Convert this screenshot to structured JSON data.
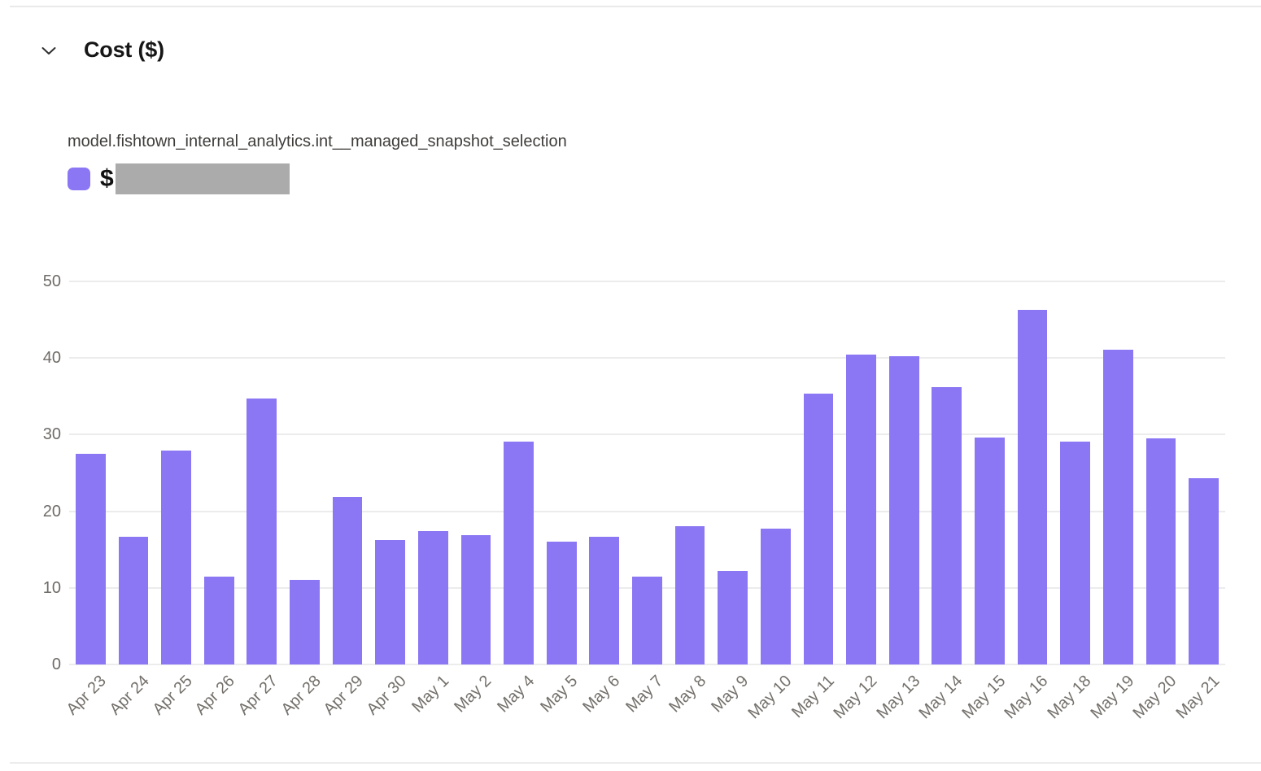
{
  "header": {
    "title": "Cost ($)"
  },
  "legend": {
    "series_name": "model.fishtown_internal_analytics.int__managed_snapshot_selection",
    "value_prefix": "$",
    "value_redacted": true
  },
  "colors": {
    "bar": "#8b77f4",
    "legend_swatch": "#8b77f4",
    "redaction_box": "#ababab",
    "gridline": "#ececec",
    "axis_label": "#6f6b67",
    "series_label": "#3f3d3a",
    "title": "#161616",
    "divider": "#e9e9e9"
  },
  "chart_data": {
    "type": "bar",
    "title": "Cost ($)",
    "series_name": "model.fishtown_internal_analytics.int__managed_snapshot_selection",
    "categories": [
      "Apr 23",
      "Apr 24",
      "Apr 25",
      "Apr 26",
      "Apr 27",
      "Apr 28",
      "Apr 29",
      "Apr 30",
      "May 1",
      "May 2",
      "May 4",
      "May 5",
      "May 6",
      "May 7",
      "May 8",
      "May 9",
      "May 10",
      "May 11",
      "May 12",
      "May 13",
      "May 14",
      "May 15",
      "May 16",
      "May 18",
      "May 19",
      "May 20",
      "May 21"
    ],
    "values": [
      27.5,
      16.7,
      27.9,
      11.5,
      34.7,
      11.0,
      21.9,
      16.2,
      17.4,
      16.9,
      29.1,
      16.0,
      16.7,
      11.5,
      18.1,
      12.2,
      17.7,
      35.4,
      40.5,
      40.2,
      36.2,
      29.6,
      46.3,
      29.1,
      41.1,
      29.5,
      24.3
    ],
    "xlabel": "",
    "ylabel": "",
    "ylim": [
      0,
      50
    ],
    "yticks": [
      0,
      10,
      20,
      30,
      40,
      50
    ],
    "grid": true,
    "bar_color": "#8b77f4",
    "legend_position": "top-left",
    "x_tick_rotation": -45
  }
}
